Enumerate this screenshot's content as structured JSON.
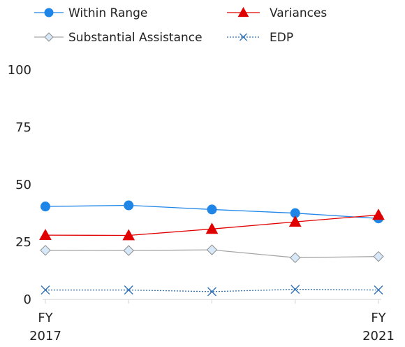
{
  "chart_data": {
    "type": "line",
    "title": "",
    "xlabel": "",
    "ylabel": "",
    "ylim": [
      0,
      100
    ],
    "yticks": [
      0,
      25,
      50,
      75,
      100
    ],
    "x_positions": [
      2017,
      2018,
      2019,
      2020,
      2021
    ],
    "x_tick_labels": [
      {
        "line1": "FY",
        "line2": "2017"
      },
      {
        "line1": "",
        "line2": ""
      },
      {
        "line1": "",
        "line2": ""
      },
      {
        "line1": "",
        "line2": ""
      },
      {
        "line1": "FY",
        "line2": "2021"
      }
    ],
    "grid": false,
    "legend_position": "top",
    "series": [
      {
        "name": "Within Range",
        "values": [
          40.5,
          41,
          39.2,
          37.6,
          35.3
        ],
        "color": "#1f86e8",
        "marker": "circle",
        "line_style": "solid"
      },
      {
        "name": "Variances",
        "values": [
          28,
          27.9,
          30.7,
          33.8,
          36.8
        ],
        "color": "#e00000",
        "marker": "triangle",
        "line_style": "solid"
      },
      {
        "name": "Substantial Assistance",
        "values": [
          21.4,
          21.3,
          21.6,
          18.2,
          18.7
        ],
        "color": "#a6a6a6",
        "marker": "diamond",
        "line_style": "solid"
      },
      {
        "name": "EDP",
        "values": [
          4.1,
          4.1,
          3.4,
          4.4,
          4.1
        ],
        "color": "#2f70b8",
        "marker": "x",
        "line_style": "dotted"
      }
    ]
  }
}
